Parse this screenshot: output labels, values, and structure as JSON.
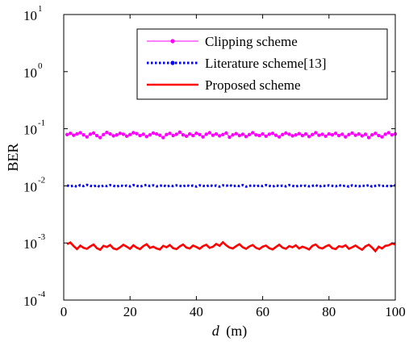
{
  "chart_data": {
    "type": "line",
    "title": "",
    "xlabel": "d",
    "xlabel_unit": "(m)",
    "ylabel": "BER",
    "xlim": [
      0,
      100
    ],
    "ylim": [
      0.0001,
      10
    ],
    "yscale": "log",
    "x_ticks": [
      "0",
      "20",
      "40",
      "60",
      "80",
      "100"
    ],
    "y_ticks": [
      {
        "base": "10",
        "exp": "-4",
        "value": 0.0001
      },
      {
        "base": "10",
        "exp": "-3",
        "value": 0.001
      },
      {
        "base": "10",
        "exp": "-2",
        "value": 0.01
      },
      {
        "base": "10",
        "exp": "-1",
        "value": 0.1
      },
      {
        "base": "10",
        "exp": "0",
        "value": 1
      },
      {
        "base": "10",
        "exp": "1",
        "value": 10
      }
    ],
    "grid": false,
    "legend_position": "top-right",
    "x": [
      1,
      2,
      3,
      4,
      5,
      6,
      7,
      8,
      9,
      10,
      11,
      12,
      13,
      14,
      15,
      16,
      17,
      18,
      19,
      20,
      21,
      22,
      23,
      24,
      25,
      26,
      27,
      28,
      29,
      30,
      31,
      32,
      33,
      34,
      35,
      36,
      37,
      38,
      39,
      40,
      41,
      42,
      43,
      44,
      45,
      46,
      47,
      48,
      49,
      50,
      51,
      52,
      53,
      54,
      55,
      56,
      57,
      58,
      59,
      60,
      61,
      62,
      63,
      64,
      65,
      66,
      67,
      68,
      69,
      70,
      71,
      72,
      73,
      74,
      75,
      76,
      77,
      78,
      79,
      80,
      81,
      82,
      83,
      84,
      85,
      86,
      87,
      88,
      89,
      90,
      91,
      92,
      93,
      94,
      95,
      96,
      97,
      98,
      99,
      100
    ],
    "series": [
      {
        "name": "Clipping scheme",
        "color": "#ff00ff",
        "style": "solid-with-dots",
        "values": [
          0.079,
          0.083,
          0.077,
          0.081,
          0.085,
          0.078,
          0.072,
          0.08,
          0.084,
          0.076,
          0.07,
          0.079,
          0.086,
          0.081,
          0.075,
          0.078,
          0.083,
          0.08,
          0.074,
          0.079,
          0.085,
          0.082,
          0.076,
          0.08,
          0.073,
          0.078,
          0.084,
          0.081,
          0.077,
          0.07,
          0.079,
          0.083,
          0.076,
          0.08,
          0.087,
          0.078,
          0.074,
          0.081,
          0.076,
          0.083,
          0.079,
          0.072,
          0.08,
          0.085,
          0.077,
          0.081,
          0.075,
          0.079,
          0.084,
          0.071,
          0.078,
          0.082,
          0.076,
          0.08,
          0.073,
          0.079,
          0.085,
          0.078,
          0.076,
          0.081,
          0.074,
          0.08,
          0.083,
          0.077,
          0.072,
          0.079,
          0.084,
          0.08,
          0.075,
          0.078,
          0.082,
          0.076,
          0.081,
          0.073,
          0.079,
          0.085,
          0.077,
          0.08,
          0.074,
          0.081,
          0.078,
          0.083,
          0.076,
          0.08,
          0.072,
          0.079,
          0.084,
          0.077,
          0.081,
          0.075,
          0.08,
          0.07,
          0.078,
          0.083,
          0.076,
          0.072,
          0.08,
          0.085,
          0.078,
          0.081
        ]
      },
      {
        "name": "Literature scheme[13]",
        "color": "#0000ff",
        "style": "dotted",
        "values": [
          0.0102,
          0.0098,
          0.0101,
          0.0097,
          0.0103,
          0.0099,
          0.0104,
          0.01,
          0.0098,
          0.0102,
          0.0096,
          0.0101,
          0.0099,
          0.0103,
          0.01,
          0.0097,
          0.0102,
          0.0099,
          0.0101,
          0.0098,
          0.0103,
          0.01,
          0.0097,
          0.0101,
          0.0104,
          0.0099,
          0.0102,
          0.0098,
          0.01,
          0.0103,
          0.0097,
          0.0101,
          0.0099,
          0.0102,
          0.01,
          0.0098,
          0.0103,
          0.0099,
          0.0101,
          0.0097,
          0.0102,
          0.01,
          0.0098,
          0.0103,
          0.0099,
          0.0101,
          0.0097,
          0.0102,
          0.01,
          0.0104,
          0.0098,
          0.0101,
          0.0099,
          0.0103,
          0.0097,
          0.01,
          0.0102,
          0.0098,
          0.0101,
          0.0099,
          0.0103,
          0.01,
          0.0097,
          0.0102,
          0.0099,
          0.0101,
          0.0098,
          0.0103,
          0.01,
          0.0097,
          0.0102,
          0.0099,
          0.0101,
          0.0098,
          0.01,
          0.0103,
          0.0097,
          0.0101,
          0.0099,
          0.0102,
          0.01,
          0.0098,
          0.0103,
          0.0099,
          0.0101,
          0.0097,
          0.0102,
          0.01,
          0.0098,
          0.0101,
          0.0099,
          0.0103,
          0.0097,
          0.01,
          0.0102,
          0.0099,
          0.0101,
          0.0098,
          0.01,
          0.0102
        ]
      },
      {
        "name": "Proposed scheme",
        "color": "#ff0000",
        "style": "solid-thick",
        "values": [
          0.00095,
          0.00102,
          0.00088,
          0.00078,
          0.0009,
          0.00082,
          0.00079,
          0.00087,
          0.00094,
          0.00081,
          0.00076,
          0.00089,
          0.00085,
          0.00092,
          0.0008,
          0.00077,
          0.00084,
          0.00093,
          0.00086,
          0.00079,
          0.00091,
          0.00083,
          0.00078,
          0.00088,
          0.00095,
          0.00082,
          0.00086,
          0.0008,
          0.00077,
          0.00089,
          0.00084,
          0.00092,
          0.00081,
          0.00078,
          0.00087,
          0.00094,
          0.00083,
          0.0008,
          0.0009,
          0.00085,
          0.00079,
          0.00088,
          0.00093,
          0.00082,
          0.00086,
          0.00096,
          0.00089,
          0.00103,
          0.00091,
          0.00083,
          0.0008,
          0.00088,
          0.00095,
          0.00084,
          0.00079,
          0.00087,
          0.00092,
          0.00082,
          0.00078,
          0.00086,
          0.0009,
          0.00081,
          0.00077,
          0.00085,
          0.00093,
          0.00083,
          0.00079,
          0.00088,
          0.00084,
          0.00091,
          0.0008,
          0.00086,
          0.00082,
          0.00077,
          0.00089,
          0.00094,
          0.00083,
          0.0008,
          0.00087,
          0.00092,
          0.00081,
          0.00078,
          0.00088,
          0.00085,
          0.00091,
          0.00079,
          0.00084,
          0.0009,
          0.00082,
          0.00076,
          0.00087,
          0.00093,
          0.00083,
          0.00072,
          0.00086,
          0.0008,
          0.00089,
          0.00091,
          0.00098,
          0.00094
        ]
      }
    ]
  }
}
